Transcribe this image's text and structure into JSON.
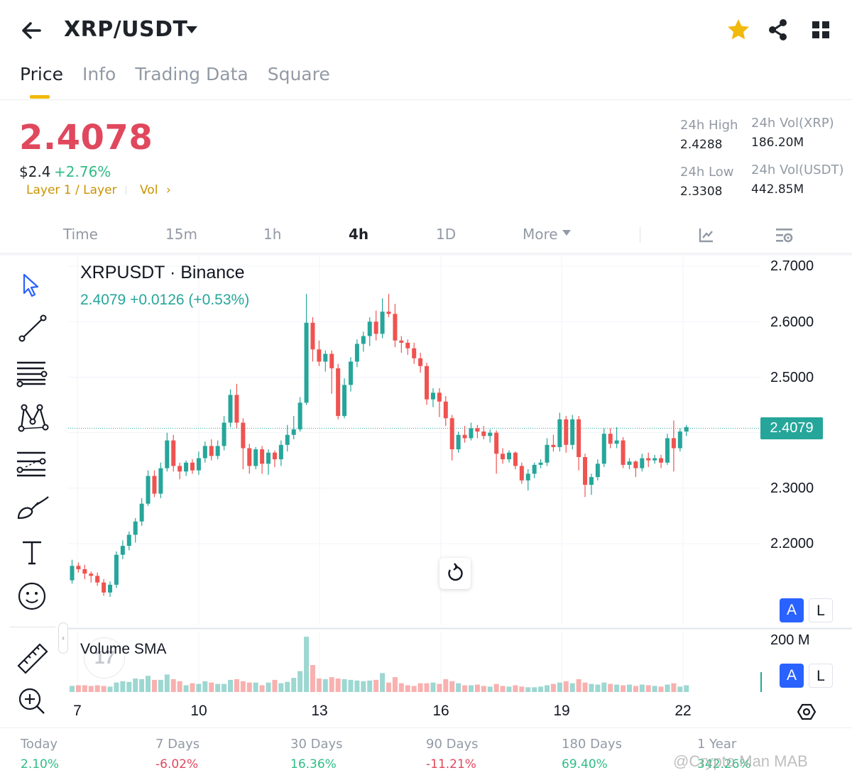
{
  "header": {
    "pair": "XRP/USDT",
    "icons": {
      "back": "arrow-left-icon",
      "pair_menu": "caret-down-icon",
      "favorite": "star-icon",
      "share": "share-icon",
      "more": "grid-icon"
    }
  },
  "tabs": [
    {
      "label": "Price",
      "active": true
    },
    {
      "label": "Info",
      "active": false
    },
    {
      "label": "Trading Data",
      "active": false
    },
    {
      "label": "Square",
      "active": false
    }
  ],
  "price": {
    "last": "2.4078",
    "usd": "$2.4",
    "change_pct": "+2.76%",
    "tag_layer": "Layer 1 / Layer",
    "tag_vol": "Vol",
    "tag_chevron": "›"
  },
  "stats": {
    "high_label": "24h High",
    "high_value": "2.4288",
    "low_label": "24h Low",
    "low_value": "2.3308",
    "vol_base_label": "24h Vol(XRP)",
    "vol_base_value": "186.20M",
    "vol_quote_label": "24h Vol(USDT)",
    "vol_quote_value": "442.85M"
  },
  "intervals": {
    "items": [
      {
        "label": "Time",
        "active": false
      },
      {
        "label": "15m",
        "active": false
      },
      {
        "label": "1h",
        "active": false
      },
      {
        "label": "4h",
        "active": true
      },
      {
        "label": "1D",
        "active": false
      },
      {
        "label": "More",
        "active": false
      }
    ],
    "icons": {
      "more_caret": "caret-down-icon",
      "indicators": "chart-indicator-icon",
      "settings": "chart-settings-icon"
    }
  },
  "toolbar": [
    "cursor-arrow-icon",
    "trend-line-icon",
    "horizontal-lines-icon",
    "pattern-icon",
    "fib-icon",
    "brush-icon",
    "text-tool-icon",
    "emoji-icon",
    "ruler-icon",
    "zoom-in-icon"
  ],
  "chart": {
    "legend_title": "XRPUSDT · Binance",
    "legend_values": "2.4079  +0.0126 (+0.53%)",
    "volume_legend": "Volume SMA",
    "current_price_tag": "2.4079",
    "price_axis": [
      "2.7000",
      "2.6000",
      "2.5000",
      "2.3000",
      "2.2000"
    ],
    "volume_axis": "200 M",
    "auto_button": "A",
    "log_button": "L",
    "dates": [
      "7",
      "10",
      "13",
      "16",
      "19",
      "22"
    ],
    "reset_icon": "reset-icon",
    "axis_settings_icon": "hexagon-settings-icon",
    "logo_text": "17"
  },
  "chart_data": {
    "type": "candlestick",
    "title": "XRPUSDT · Binance",
    "interval": "4h",
    "x_ticks": [
      "7",
      "10",
      "13",
      "16",
      "19",
      "22"
    ],
    "ylim": [
      2.1,
      2.7
    ],
    "y_ticks": [
      2.7,
      2.6,
      2.5,
      2.4,
      2.3,
      2.2
    ],
    "last_value": 2.4079,
    "up_color": "#26a69a",
    "down_color": "#ef5350",
    "candles": [
      [
        2.134,
        2.16,
        2.128,
        2.171
      ],
      [
        2.16,
        2.154,
        2.148,
        2.166
      ],
      [
        2.154,
        2.146,
        2.136,
        2.162
      ],
      [
        2.146,
        2.142,
        2.13,
        2.15
      ],
      [
        2.142,
        2.13,
        2.124,
        2.148
      ],
      [
        2.13,
        2.112,
        2.106,
        2.136
      ],
      [
        2.112,
        2.126,
        2.104,
        2.132
      ],
      [
        2.126,
        2.18,
        2.12,
        2.186
      ],
      [
        2.18,
        2.196,
        2.172,
        2.206
      ],
      [
        2.196,
        2.216,
        2.188,
        2.222
      ],
      [
        2.216,
        2.24,
        2.202,
        2.246
      ],
      [
        2.24,
        2.272,
        2.232,
        2.282
      ],
      [
        2.272,
        2.322,
        2.268,
        2.332
      ],
      [
        2.322,
        2.29,
        2.284,
        2.332
      ],
      [
        2.29,
        2.336,
        2.282,
        2.346
      ],
      [
        2.336,
        2.386,
        2.33,
        2.4
      ],
      [
        2.386,
        2.34,
        2.33,
        2.396
      ],
      [
        2.34,
        2.33,
        2.316,
        2.346
      ],
      [
        2.33,
        2.346,
        2.322,
        2.35
      ],
      [
        2.346,
        2.332,
        2.326,
        2.352
      ],
      [
        2.332,
        2.354,
        2.324,
        2.366
      ],
      [
        2.354,
        2.376,
        2.346,
        2.384
      ],
      [
        2.376,
        2.358,
        2.35,
        2.388
      ],
      [
        2.358,
        2.376,
        2.352,
        2.386
      ],
      [
        2.376,
        2.418,
        2.368,
        2.43
      ],
      [
        2.418,
        2.468,
        2.41,
        2.478
      ],
      [
        2.468,
        2.418,
        2.408,
        2.488
      ],
      [
        2.418,
        2.372,
        2.334,
        2.426
      ],
      [
        2.372,
        2.34,
        2.326,
        2.38
      ],
      [
        2.34,
        2.37,
        2.334,
        2.374
      ],
      [
        2.37,
        2.344,
        2.326,
        2.376
      ],
      [
        2.344,
        2.364,
        2.324,
        2.37
      ],
      [
        2.364,
        2.352,
        2.338,
        2.368
      ],
      [
        2.352,
        2.378,
        2.34,
        2.386
      ],
      [
        2.378,
        2.396,
        2.366,
        2.414
      ],
      [
        2.396,
        2.406,
        2.388,
        2.43
      ],
      [
        2.406,
        2.454,
        2.402,
        2.464
      ],
      [
        2.454,
        2.598,
        2.45,
        2.65
      ],
      [
        2.598,
        2.55,
        2.528,
        2.608
      ],
      [
        2.55,
        2.528,
        2.52,
        2.566
      ],
      [
        2.528,
        2.542,
        2.51,
        2.548
      ],
      [
        2.542,
        2.516,
        2.47,
        2.548
      ],
      [
        2.516,
        2.43,
        2.424,
        2.524
      ],
      [
        2.43,
        2.486,
        2.426,
        2.498
      ],
      [
        2.486,
        2.528,
        2.474,
        2.536
      ],
      [
        2.528,
        2.56,
        2.518,
        2.568
      ],
      [
        2.56,
        2.574,
        2.546,
        2.582
      ],
      [
        2.574,
        2.6,
        2.556,
        2.608
      ],
      [
        2.6,
        2.578,
        2.566,
        2.62
      ],
      [
        2.578,
        2.618,
        2.57,
        2.642
      ],
      [
        2.618,
        2.614,
        2.608,
        2.65
      ],
      [
        2.614,
        2.566,
        2.554,
        2.632
      ],
      [
        2.566,
        2.562,
        2.544,
        2.574
      ],
      [
        2.562,
        2.552,
        2.54,
        2.568
      ],
      [
        2.552,
        2.534,
        2.524,
        2.562
      ],
      [
        2.534,
        2.52,
        2.508,
        2.544
      ],
      [
        2.52,
        2.46,
        2.45,
        2.526
      ],
      [
        2.46,
        2.472,
        2.446,
        2.48
      ],
      [
        2.472,
        2.456,
        2.428,
        2.48
      ],
      [
        2.456,
        2.426,
        2.412,
        2.466
      ],
      [
        2.426,
        2.37,
        2.35,
        2.432
      ],
      [
        2.37,
        2.396,
        2.364,
        2.402
      ],
      [
        2.396,
        2.39,
        2.382,
        2.412
      ],
      [
        2.39,
        2.408,
        2.386,
        2.418
      ],
      [
        2.408,
        2.402,
        2.39,
        2.414
      ],
      [
        2.402,
        2.394,
        2.388,
        2.412
      ],
      [
        2.394,
        2.4,
        2.382,
        2.406
      ],
      [
        2.4,
        2.362,
        2.326,
        2.404
      ],
      [
        2.362,
        2.352,
        2.344,
        2.372
      ],
      [
        2.352,
        2.364,
        2.346,
        2.368
      ],
      [
        2.364,
        2.34,
        2.334,
        2.366
      ],
      [
        2.34,
        2.314,
        2.308,
        2.346
      ],
      [
        2.314,
        2.326,
        2.296,
        2.334
      ],
      [
        2.326,
        2.342,
        2.318,
        2.346
      ],
      [
        2.342,
        2.346,
        2.336,
        2.352
      ],
      [
        2.346,
        2.378,
        2.34,
        2.39
      ],
      [
        2.378,
        2.374,
        2.366,
        2.396
      ],
      [
        2.374,
        2.424,
        2.366,
        2.436
      ],
      [
        2.424,
        2.378,
        2.364,
        2.43
      ],
      [
        2.378,
        2.424,
        2.37,
        2.432
      ],
      [
        2.424,
        2.356,
        2.332,
        2.43
      ],
      [
        2.356,
        2.306,
        2.284,
        2.362
      ],
      [
        2.306,
        2.32,
        2.288,
        2.326
      ],
      [
        2.32,
        2.344,
        2.314,
        2.352
      ],
      [
        2.344,
        2.398,
        2.338,
        2.408
      ],
      [
        2.398,
        2.38,
        2.372,
        2.408
      ],
      [
        2.38,
        2.386,
        2.372,
        2.41
      ],
      [
        2.386,
        2.342,
        2.336,
        2.392
      ],
      [
        2.342,
        2.348,
        2.334,
        2.354
      ],
      [
        2.348,
        2.336,
        2.32,
        2.35
      ],
      [
        2.336,
        2.354,
        2.33,
        2.362
      ],
      [
        2.354,
        2.35,
        2.338,
        2.364
      ],
      [
        2.35,
        2.354,
        2.344,
        2.36
      ],
      [
        2.354,
        2.346,
        2.336,
        2.36
      ],
      [
        2.346,
        2.39,
        2.342,
        2.398
      ],
      [
        2.39,
        2.372,
        2.33,
        2.422
      ],
      [
        2.372,
        2.402,
        2.366,
        2.408
      ],
      [
        2.402,
        2.41,
        2.394,
        2.414
      ]
    ],
    "volumes_millions": [
      9,
      10,
      10,
      9,
      10,
      9,
      8,
      14,
      16,
      15,
      20,
      19,
      24,
      18,
      18,
      26,
      19,
      16,
      10,
      13,
      12,
      16,
      14,
      12,
      12,
      18,
      19,
      16,
      14,
      14,
      10,
      14,
      18,
      13,
      15,
      21,
      31,
      82,
      40,
      20,
      19,
      22,
      20,
      19,
      18,
      17,
      16,
      17,
      18,
      28,
      14,
      22,
      13,
      10,
      9,
      13,
      13,
      14,
      12,
      19,
      16,
      13,
      10,
      10,
      11,
      9,
      8,
      12,
      9,
      8,
      10,
      8,
      7,
      7,
      8,
      10,
      12,
      14,
      16,
      13,
      19,
      14,
      12,
      11,
      14,
      12,
      11,
      10,
      11,
      9,
      11,
      10,
      9,
      8,
      11,
      13,
      8,
      10
    ]
  },
  "performance": [
    {
      "label": "Today",
      "value": "2.10%",
      "sign": "pos"
    },
    {
      "label": "7 Days",
      "value": "-6.02%",
      "sign": "neg"
    },
    {
      "label": "30 Days",
      "value": "16.36%",
      "sign": "pos"
    },
    {
      "label": "90 Days",
      "value": "-11.21%",
      "sign": "neg"
    },
    {
      "label": "180 Days",
      "value": "69.40%",
      "sign": "pos"
    },
    {
      "label": "1 Year",
      "value": "342.26%",
      "sign": "pos"
    }
  ],
  "watermark": "@Crypto Man MAB",
  "colors": {
    "up": "#2ebd85",
    "down": "#e0485d",
    "accent": "#f0b90b",
    "chart_up": "#26a69a",
    "chart_down": "#ef5350",
    "axis_btn": "#2962ff"
  }
}
